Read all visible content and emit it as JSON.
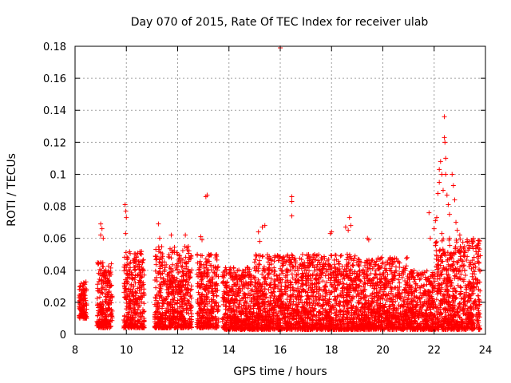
{
  "chart_data": {
    "type": "scatter",
    "title": "Day 070 of 2015, Rate Of TEC Index for receiver ulab",
    "xlabel": "GPS time / hours",
    "ylabel": "ROTI / TECUs",
    "xlim": [
      8,
      24
    ],
    "ylim": [
      0,
      0.18
    ],
    "xticks": [
      8,
      10,
      12,
      14,
      16,
      18,
      20,
      22,
      24
    ],
    "yticks": [
      0,
      0.02,
      0.04,
      0.06,
      0.08,
      0.1,
      0.12,
      0.14,
      0.16,
      0.18
    ],
    "xtick_labels": [
      "8",
      "10",
      "12",
      "14",
      "16",
      "18",
      "20",
      "22",
      "24"
    ],
    "ytick_labels": [
      "0",
      "0.02",
      "0.04",
      "0.06",
      "0.08",
      "0.1",
      "0.12",
      "0.14",
      "0.16",
      "0.18"
    ],
    "grid": true,
    "marker": "plus",
    "colors": {
      "marker": "#ff0000",
      "grid": "#a0a0a0",
      "axis": "#000000"
    },
    "series": [
      {
        "name": "ROTI",
        "clusters": [
          {
            "x_range": [
              8.15,
              8.45
            ],
            "y_range": [
              0.01,
              0.033
            ]
          },
          {
            "x_range": [
              8.85,
              9.45
            ],
            "y_range": [
              0.004,
              0.045
            ]
          },
          {
            "x_range": [
              9.9,
              10.7
            ],
            "y_range": [
              0.004,
              0.052
            ]
          },
          {
            "x_range": [
              11.1,
              12.55
            ],
            "y_range": [
              0.004,
              0.055
            ]
          },
          {
            "x_range": [
              12.75,
              13.6
            ],
            "y_range": [
              0.004,
              0.05
            ]
          },
          {
            "x_range": [
              13.75,
              15.0
            ],
            "y_range": [
              0.003,
              0.042
            ]
          },
          {
            "x_range": [
              15.0,
              17.0
            ],
            "y_range": [
              0.003,
              0.05
            ]
          },
          {
            "x_range": [
              17.0,
              19.0
            ],
            "y_range": [
              0.003,
              0.05
            ]
          },
          {
            "x_range": [
              19.0,
              21.0
            ],
            "y_range": [
              0.003,
              0.048
            ]
          },
          {
            "x_range": [
              21.0,
              22.0
            ],
            "y_range": [
              0.003,
              0.04
            ]
          },
          {
            "x_range": [
              22.0,
              23.8
            ],
            "y_range": [
              0.003,
              0.06
            ]
          }
        ],
        "points": [
          [
            9.0,
            0.069
          ],
          [
            9.0,
            0.062
          ],
          [
            9.05,
            0.066
          ],
          [
            9.1,
            0.06
          ],
          [
            9.95,
            0.081
          ],
          [
            9.98,
            0.077
          ],
          [
            10.0,
            0.073
          ],
          [
            9.97,
            0.063
          ],
          [
            11.25,
            0.069
          ],
          [
            11.3,
            0.06
          ],
          [
            11.75,
            0.062
          ],
          [
            12.3,
            0.062
          ],
          [
            13.15,
            0.087
          ],
          [
            13.1,
            0.086
          ],
          [
            12.9,
            0.061
          ],
          [
            12.95,
            0.059
          ],
          [
            15.15,
            0.064
          ],
          [
            15.3,
            0.067
          ],
          [
            15.4,
            0.068
          ],
          [
            15.2,
            0.058
          ],
          [
            16.0,
            0.179
          ],
          [
            16.45,
            0.086
          ],
          [
            16.45,
            0.083
          ],
          [
            16.45,
            0.074
          ],
          [
            17.95,
            0.063
          ],
          [
            18.0,
            0.064
          ],
          [
            18.55,
            0.067
          ],
          [
            18.7,
            0.073
          ],
          [
            18.75,
            0.068
          ],
          [
            18.65,
            0.065
          ],
          [
            19.4,
            0.06
          ],
          [
            19.45,
            0.059
          ],
          [
            21.8,
            0.076
          ],
          [
            21.85,
            0.06
          ],
          [
            22.0,
            0.066
          ],
          [
            22.05,
            0.071
          ],
          [
            22.1,
            0.073
          ],
          [
            22.15,
            0.088
          ],
          [
            22.2,
            0.095
          ],
          [
            22.2,
            0.103
          ],
          [
            22.25,
            0.108
          ],
          [
            22.3,
            0.1
          ],
          [
            22.35,
            0.09
          ],
          [
            22.4,
            0.136
          ],
          [
            22.4,
            0.123
          ],
          [
            22.42,
            0.12
          ],
          [
            22.45,
            0.11
          ],
          [
            22.45,
            0.1
          ],
          [
            22.5,
            0.087
          ],
          [
            22.55,
            0.081
          ],
          [
            22.6,
            0.075
          ],
          [
            22.7,
            0.1
          ],
          [
            22.75,
            0.093
          ],
          [
            22.8,
            0.084
          ],
          [
            22.85,
            0.07
          ],
          [
            22.9,
            0.065
          ],
          [
            23.0,
            0.062
          ],
          [
            22.6,
            0.06
          ],
          [
            22.3,
            0.063
          ]
        ]
      }
    ]
  }
}
